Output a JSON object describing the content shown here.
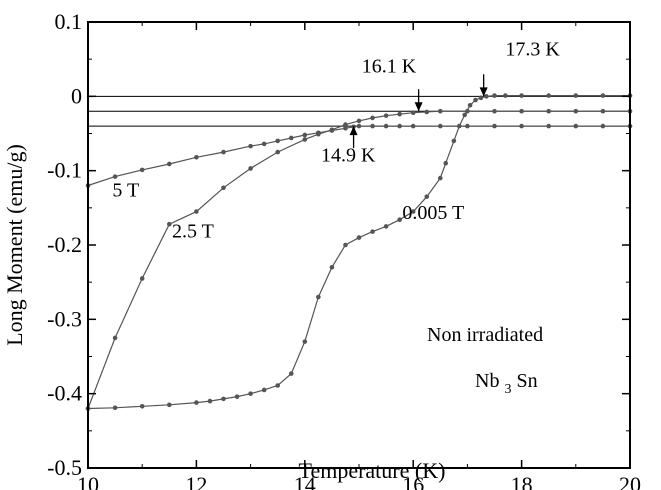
{
  "chart_data": {
    "type": "line",
    "title": "",
    "xlabel": "Temperature (K)",
    "ylabel": "Long Moment (emu/g)",
    "xlim": [
      10,
      20
    ],
    "ylim": [
      -0.5,
      0.1
    ],
    "xticks": [
      10,
      12,
      14,
      16,
      18,
      20
    ],
    "xtick_labels": [
      "10",
      "12",
      "14",
      "16",
      "18",
      "20"
    ],
    "yticks": [
      -0.5,
      -0.4,
      -0.3,
      -0.2,
      -0.1,
      0,
      0.1
    ],
    "ytick_labels": [
      "-0.5",
      "-0.4",
      "-0.3",
      "-0.2",
      "-0.1",
      "0",
      "0.1"
    ],
    "grid": false,
    "reference_lines": [
      0,
      -0.02,
      -0.04
    ],
    "series": [
      {
        "name": "0.005 T",
        "x": [
          10.0,
          10.5,
          11.0,
          11.5,
          12.0,
          12.25,
          12.5,
          12.75,
          13.0,
          13.25,
          13.5,
          13.75,
          14.0,
          14.25,
          14.5,
          14.75,
          15.0,
          15.25,
          15.5,
          15.75,
          16.0,
          16.25,
          16.5,
          16.6,
          16.75,
          16.85,
          16.95,
          17.05,
          17.15,
          17.25,
          17.35,
          17.5,
          17.7,
          18.0,
          18.5,
          19.0,
          19.5,
          20.0
        ],
        "y": [
          -0.42,
          -0.419,
          -0.417,
          -0.415,
          -0.412,
          -0.41,
          -0.407,
          -0.404,
          -0.4,
          -0.395,
          -0.389,
          -0.373,
          -0.33,
          -0.27,
          -0.23,
          -0.2,
          -0.19,
          -0.182,
          -0.175,
          -0.166,
          -0.155,
          -0.135,
          -0.11,
          -0.09,
          -0.06,
          -0.04,
          -0.025,
          -0.012,
          -0.005,
          -0.002,
          0.0,
          0.001,
          0.001,
          0.001,
          0.001,
          0.001,
          0.001,
          0.001
        ]
      },
      {
        "name": "2.5 T",
        "x": [
          10.0,
          10.5,
          11.0,
          11.5,
          12.0,
          12.5,
          13.0,
          13.5,
          14.0,
          14.25,
          14.5,
          14.75,
          15.0,
          15.25,
          15.5,
          15.75,
          16.0,
          16.25,
          16.5,
          17.0,
          17.5,
          18.0,
          18.5,
          19.0,
          19.5,
          20.0
        ],
        "y": [
          -0.42,
          -0.325,
          -0.245,
          -0.172,
          -0.155,
          -0.123,
          -0.097,
          -0.075,
          -0.058,
          -0.051,
          -0.045,
          -0.038,
          -0.033,
          -0.029,
          -0.026,
          -0.024,
          -0.022,
          -0.021,
          -0.02,
          -0.02,
          -0.02,
          -0.02,
          -0.02,
          -0.02,
          -0.02,
          -0.02
        ]
      },
      {
        "name": "5 T",
        "x": [
          10.0,
          10.5,
          11.0,
          11.5,
          12.0,
          12.5,
          13.0,
          13.25,
          13.5,
          13.75,
          14.0,
          14.25,
          14.5,
          14.75,
          14.9,
          15.0,
          15.25,
          15.5,
          15.75,
          16.0,
          16.5,
          17.0,
          17.5,
          18.0,
          18.5,
          19.0,
          19.5,
          20.0
        ],
        "y": [
          -0.12,
          -0.108,
          -0.099,
          -0.091,
          -0.082,
          -0.075,
          -0.067,
          -0.064,
          -0.06,
          -0.056,
          -0.052,
          -0.049,
          -0.046,
          -0.043,
          -0.041,
          -0.04,
          -0.04,
          -0.04,
          -0.04,
          -0.04,
          -0.04,
          -0.04,
          -0.04,
          -0.04,
          -0.04,
          -0.04,
          -0.04,
          -0.04
        ]
      }
    ],
    "annotations": [
      {
        "text": "5 T",
        "x": 10.45,
        "y": -0.135,
        "arrow": false
      },
      {
        "text": "2.5 T",
        "x": 11.55,
        "y": -0.19,
        "arrow": false
      },
      {
        "text": "0.005 T",
        "x": 15.8,
        "y": -0.165,
        "arrow": false
      },
      {
        "text": "17.3 K",
        "x": 17.7,
        "y": 0.055,
        "arrow": true,
        "point": [
          17.3,
          0.0
        ]
      },
      {
        "text": "16.1 K",
        "x": 15.05,
        "y": 0.032,
        "arrow": true,
        "point": [
          16.1,
          -0.02
        ]
      },
      {
        "text": "14.9 K",
        "x": 14.3,
        "y": -0.088,
        "arrow": true,
        "point": [
          14.9,
          -0.04
        ]
      }
    ],
    "inset_label": {
      "line1": "Non irradiated",
      "line2_main": "Nb",
      "line2_sub": "3",
      "line2_end": "Sn"
    }
  }
}
